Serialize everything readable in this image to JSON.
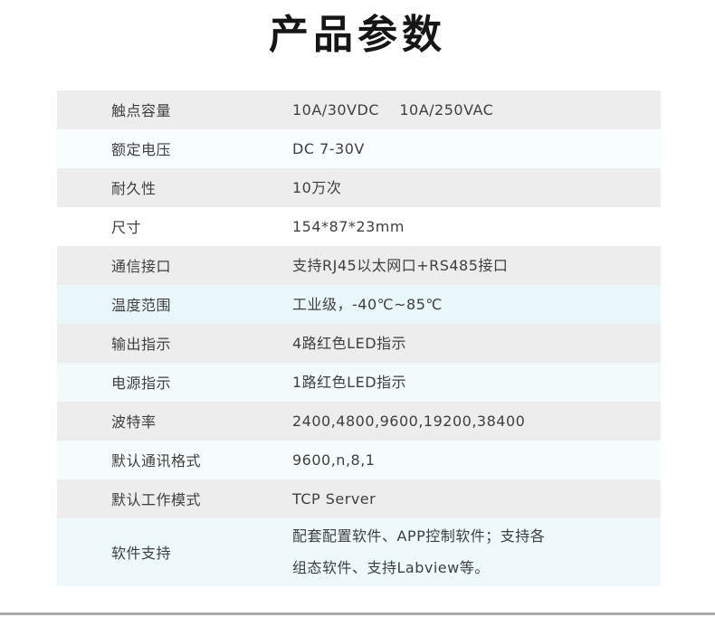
{
  "header": {
    "title": "产品参数"
  },
  "colors": {
    "title_color": "#161616",
    "text_color": "#3f3f3f",
    "divider_color": "#a9a9a9",
    "page_bg": "#ffffff",
    "row_gray": "#ededed",
    "row_highlight_cyan": "#e9f6fa"
  },
  "table": {
    "rows": [
      {
        "label": "触点容量",
        "value": "10A/30VDC    10A/250VAC",
        "bg": "#ededed",
        "tall": false
      },
      {
        "label": "额定电压",
        "value": "DC 7-30V",
        "bg": "#f8feff",
        "tall": false
      },
      {
        "label": "耐久性",
        "value": "10万次",
        "bg": "#ededed",
        "tall": false
      },
      {
        "label": "尺寸",
        "value": "154*87*23mm",
        "bg": "#ffffff",
        "tall": false
      },
      {
        "label": "通信接口",
        "value": "支持RJ45以太网口+RS485接口",
        "bg": "#ededed",
        "tall": false
      },
      {
        "label": "温度范围",
        "value": "工业级，-40℃~85℃",
        "bg": "#e9f6fa",
        "tall": false
      },
      {
        "label": "输出指示",
        "value": "4路红色LED指示",
        "bg": "#ededed",
        "tall": false
      },
      {
        "label": "电源指示",
        "value": "1路红色LED指示",
        "bg": "#f2fafc",
        "tall": false
      },
      {
        "label": "波特率",
        "value": "2400,4800,9600,19200,38400",
        "bg": "#ededed",
        "tall": false
      },
      {
        "label": "默认通讯格式",
        "value": "9600,n,8,1",
        "bg": "#f7fdfd",
        "tall": false
      },
      {
        "label": "默认工作模式",
        "value": "TCP Server",
        "bg": "#ededed",
        "tall": false
      },
      {
        "label": "软件支持",
        "value": "配套配置软件、APP控制软件；支持各组态软件、支持Labview等。",
        "bg": "#eefafc",
        "tall": true
      }
    ]
  }
}
